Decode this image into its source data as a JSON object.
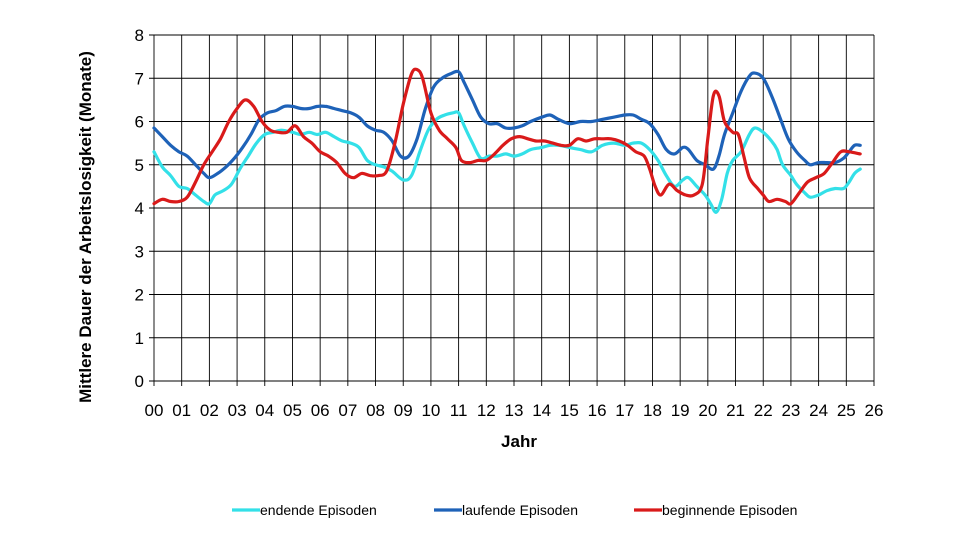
{
  "chart_data": {
    "type": "line",
    "title": "",
    "xlabel": "Jahr",
    "ylabel": "Mittlere Dauer der Arbeitslosigkeit (Monate)",
    "xlim": [
      0,
      26
    ],
    "ylim": [
      0,
      8
    ],
    "x_ticks": [
      "00",
      "01",
      "02",
      "03",
      "04",
      "05",
      "06",
      "07",
      "08",
      "09",
      "10",
      "11",
      "12",
      "13",
      "14",
      "15",
      "16",
      "17",
      "18",
      "19",
      "20",
      "21",
      "22",
      "23",
      "24",
      "25",
      "26"
    ],
    "y_ticks": [
      0,
      1,
      2,
      3,
      4,
      5,
      6,
      7,
      8
    ],
    "grid": true,
    "legend_position": "bottom",
    "series": [
      {
        "name": "endende Episoden",
        "color": "#33e0e8",
        "points": [
          [
            0,
            5.3
          ],
          [
            0.3,
            4.95
          ],
          [
            0.6,
            4.75
          ],
          [
            0.9,
            4.5
          ],
          [
            1.2,
            4.45
          ],
          [
            1.5,
            4.3
          ],
          [
            1.8,
            4.15
          ],
          [
            2.0,
            4.1
          ],
          [
            2.2,
            4.3
          ],
          [
            2.5,
            4.4
          ],
          [
            2.8,
            4.55
          ],
          [
            3.1,
            4.9
          ],
          [
            3.4,
            5.2
          ],
          [
            3.7,
            5.5
          ],
          [
            4.0,
            5.7
          ],
          [
            4.3,
            5.75
          ],
          [
            4.6,
            5.8
          ],
          [
            5.0,
            5.75
          ],
          [
            5.3,
            5.7
          ],
          [
            5.6,
            5.75
          ],
          [
            5.9,
            5.7
          ],
          [
            6.2,
            5.75
          ],
          [
            6.5,
            5.65
          ],
          [
            6.8,
            5.55
          ],
          [
            7.1,
            5.5
          ],
          [
            7.4,
            5.4
          ],
          [
            7.7,
            5.1
          ],
          [
            8.0,
            5.0
          ],
          [
            8.3,
            4.95
          ],
          [
            8.6,
            4.85
          ],
          [
            9.0,
            4.65
          ],
          [
            9.3,
            4.75
          ],
          [
            9.6,
            5.3
          ],
          [
            9.9,
            5.8
          ],
          [
            10.2,
            6.05
          ],
          [
            10.5,
            6.15
          ],
          [
            10.8,
            6.2
          ],
          [
            11.0,
            6.2
          ],
          [
            11.2,
            5.9
          ],
          [
            11.5,
            5.5
          ],
          [
            11.8,
            5.15
          ],
          [
            12.1,
            5.2
          ],
          [
            12.4,
            5.2
          ],
          [
            12.7,
            5.25
          ],
          [
            13.0,
            5.2
          ],
          [
            13.3,
            5.25
          ],
          [
            13.6,
            5.35
          ],
          [
            14.0,
            5.4
          ],
          [
            14.3,
            5.45
          ],
          [
            14.6,
            5.45
          ],
          [
            15.0,
            5.4
          ],
          [
            15.4,
            5.35
          ],
          [
            15.8,
            5.3
          ],
          [
            16.2,
            5.45
          ],
          [
            16.6,
            5.5
          ],
          [
            17.0,
            5.45
          ],
          [
            17.3,
            5.5
          ],
          [
            17.6,
            5.5
          ],
          [
            17.9,
            5.35
          ],
          [
            18.2,
            5.1
          ],
          [
            18.5,
            4.75
          ],
          [
            18.8,
            4.5
          ],
          [
            19.1,
            4.65
          ],
          [
            19.3,
            4.7
          ],
          [
            19.6,
            4.5
          ],
          [
            19.9,
            4.3
          ],
          [
            20.1,
            4.1
          ],
          [
            20.3,
            3.9
          ],
          [
            20.5,
            4.2
          ],
          [
            20.7,
            4.8
          ],
          [
            20.9,
            5.1
          ],
          [
            21.2,
            5.3
          ],
          [
            21.5,
            5.7
          ],
          [
            21.7,
            5.85
          ],
          [
            22.0,
            5.75
          ],
          [
            22.3,
            5.55
          ],
          [
            22.5,
            5.35
          ],
          [
            22.7,
            5.0
          ],
          [
            23.0,
            4.75
          ],
          [
            23.2,
            4.55
          ],
          [
            23.5,
            4.35
          ],
          [
            23.7,
            4.25
          ],
          [
            24.0,
            4.3
          ],
          [
            24.3,
            4.4
          ],
          [
            24.6,
            4.45
          ],
          [
            24.9,
            4.45
          ],
          [
            25.1,
            4.6
          ],
          [
            25.3,
            4.8
          ],
          [
            25.5,
            4.9
          ]
        ]
      },
      {
        "name": "laufende Episoden",
        "color": "#1e62b8",
        "points": [
          [
            0,
            5.85
          ],
          [
            0.3,
            5.65
          ],
          [
            0.6,
            5.45
          ],
          [
            0.9,
            5.3
          ],
          [
            1.2,
            5.2
          ],
          [
            1.5,
            5.0
          ],
          [
            1.8,
            4.8
          ],
          [
            2.0,
            4.7
          ],
          [
            2.3,
            4.8
          ],
          [
            2.6,
            4.95
          ],
          [
            2.9,
            5.15
          ],
          [
            3.2,
            5.4
          ],
          [
            3.5,
            5.7
          ],
          [
            3.8,
            6.05
          ],
          [
            4.1,
            6.2
          ],
          [
            4.4,
            6.25
          ],
          [
            4.7,
            6.35
          ],
          [
            5.0,
            6.35
          ],
          [
            5.3,
            6.3
          ],
          [
            5.6,
            6.3
          ],
          [
            5.9,
            6.35
          ],
          [
            6.2,
            6.35
          ],
          [
            6.5,
            6.3
          ],
          [
            6.8,
            6.25
          ],
          [
            7.1,
            6.2
          ],
          [
            7.4,
            6.1
          ],
          [
            7.7,
            5.9
          ],
          [
            8.0,
            5.8
          ],
          [
            8.3,
            5.75
          ],
          [
            8.6,
            5.55
          ],
          [
            8.9,
            5.2
          ],
          [
            9.2,
            5.2
          ],
          [
            9.5,
            5.6
          ],
          [
            9.8,
            6.3
          ],
          [
            10.1,
            6.8
          ],
          [
            10.4,
            7.0
          ],
          [
            10.7,
            7.1
          ],
          [
            11.0,
            7.15
          ],
          [
            11.2,
            6.9
          ],
          [
            11.5,
            6.5
          ],
          [
            11.8,
            6.1
          ],
          [
            12.1,
            5.95
          ],
          [
            12.4,
            5.95
          ],
          [
            12.7,
            5.85
          ],
          [
            13.0,
            5.85
          ],
          [
            13.3,
            5.9
          ],
          [
            13.6,
            6.0
          ],
          [
            14.0,
            6.1
          ],
          [
            14.3,
            6.15
          ],
          [
            14.6,
            6.05
          ],
          [
            15.0,
            5.95
          ],
          [
            15.4,
            6.0
          ],
          [
            15.8,
            6.0
          ],
          [
            16.2,
            6.05
          ],
          [
            16.6,
            6.1
          ],
          [
            17.0,
            6.15
          ],
          [
            17.3,
            6.15
          ],
          [
            17.6,
            6.05
          ],
          [
            17.9,
            5.95
          ],
          [
            18.2,
            5.7
          ],
          [
            18.5,
            5.35
          ],
          [
            18.8,
            5.25
          ],
          [
            19.1,
            5.4
          ],
          [
            19.3,
            5.35
          ],
          [
            19.6,
            5.1
          ],
          [
            19.9,
            5.0
          ],
          [
            20.2,
            4.9
          ],
          [
            20.4,
            5.2
          ],
          [
            20.6,
            5.7
          ],
          [
            20.9,
            6.2
          ],
          [
            21.2,
            6.7
          ],
          [
            21.5,
            7.05
          ],
          [
            21.7,
            7.12
          ],
          [
            22.0,
            7.0
          ],
          [
            22.3,
            6.6
          ],
          [
            22.6,
            6.1
          ],
          [
            22.9,
            5.6
          ],
          [
            23.2,
            5.3
          ],
          [
            23.5,
            5.1
          ],
          [
            23.7,
            5.0
          ],
          [
            24.0,
            5.05
          ],
          [
            24.3,
            5.05
          ],
          [
            24.6,
            5.05
          ],
          [
            24.9,
            5.15
          ],
          [
            25.1,
            5.3
          ],
          [
            25.3,
            5.45
          ],
          [
            25.5,
            5.45
          ]
        ]
      },
      {
        "name": "beginnende Episoden",
        "color": "#d91a1a",
        "points": [
          [
            0,
            4.1
          ],
          [
            0.3,
            4.2
          ],
          [
            0.6,
            4.15
          ],
          [
            0.9,
            4.15
          ],
          [
            1.2,
            4.25
          ],
          [
            1.5,
            4.6
          ],
          [
            1.8,
            5.0
          ],
          [
            2.1,
            5.3
          ],
          [
            2.4,
            5.6
          ],
          [
            2.7,
            6.0
          ],
          [
            3.0,
            6.3
          ],
          [
            3.3,
            6.5
          ],
          [
            3.6,
            6.35
          ],
          [
            3.9,
            6.0
          ],
          [
            4.2,
            5.8
          ],
          [
            4.5,
            5.75
          ],
          [
            4.8,
            5.75
          ],
          [
            5.1,
            5.9
          ],
          [
            5.4,
            5.65
          ],
          [
            5.7,
            5.5
          ],
          [
            6.0,
            5.3
          ],
          [
            6.3,
            5.2
          ],
          [
            6.6,
            5.05
          ],
          [
            6.9,
            4.8
          ],
          [
            7.2,
            4.7
          ],
          [
            7.5,
            4.8
          ],
          [
            7.8,
            4.75
          ],
          [
            8.1,
            4.75
          ],
          [
            8.4,
            4.85
          ],
          [
            8.7,
            5.5
          ],
          [
            9.0,
            6.4
          ],
          [
            9.3,
            7.1
          ],
          [
            9.5,
            7.2
          ],
          [
            9.7,
            7.0
          ],
          [
            10.0,
            6.2
          ],
          [
            10.3,
            5.8
          ],
          [
            10.6,
            5.6
          ],
          [
            10.9,
            5.4
          ],
          [
            11.1,
            5.1
          ],
          [
            11.4,
            5.05
          ],
          [
            11.7,
            5.1
          ],
          [
            12.0,
            5.1
          ],
          [
            12.3,
            5.25
          ],
          [
            12.6,
            5.45
          ],
          [
            12.9,
            5.6
          ],
          [
            13.2,
            5.65
          ],
          [
            13.5,
            5.6
          ],
          [
            13.8,
            5.55
          ],
          [
            14.1,
            5.55
          ],
          [
            14.4,
            5.5
          ],
          [
            14.7,
            5.45
          ],
          [
            15.0,
            5.45
          ],
          [
            15.3,
            5.6
          ],
          [
            15.6,
            5.55
          ],
          [
            15.9,
            5.6
          ],
          [
            16.2,
            5.6
          ],
          [
            16.5,
            5.6
          ],
          [
            16.8,
            5.55
          ],
          [
            17.1,
            5.45
          ],
          [
            17.4,
            5.3
          ],
          [
            17.7,
            5.2
          ],
          [
            17.9,
            4.9
          ],
          [
            18.1,
            4.5
          ],
          [
            18.3,
            4.3
          ],
          [
            18.6,
            4.55
          ],
          [
            18.9,
            4.4
          ],
          [
            19.2,
            4.3
          ],
          [
            19.5,
            4.3
          ],
          [
            19.8,
            4.55
          ],
          [
            20.0,
            5.6
          ],
          [
            20.2,
            6.6
          ],
          [
            20.4,
            6.6
          ],
          [
            20.6,
            6.0
          ],
          [
            20.9,
            5.75
          ],
          [
            21.1,
            5.7
          ],
          [
            21.3,
            5.2
          ],
          [
            21.5,
            4.7
          ],
          [
            21.8,
            4.45
          ],
          [
            22.0,
            4.3
          ],
          [
            22.2,
            4.15
          ],
          [
            22.5,
            4.2
          ],
          [
            22.8,
            4.15
          ],
          [
            23.0,
            4.1
          ],
          [
            23.3,
            4.35
          ],
          [
            23.6,
            4.6
          ],
          [
            23.9,
            4.7
          ],
          [
            24.2,
            4.8
          ],
          [
            24.5,
            5.05
          ],
          [
            24.8,
            5.3
          ],
          [
            25.1,
            5.3
          ],
          [
            25.5,
            5.25
          ]
        ]
      }
    ]
  }
}
